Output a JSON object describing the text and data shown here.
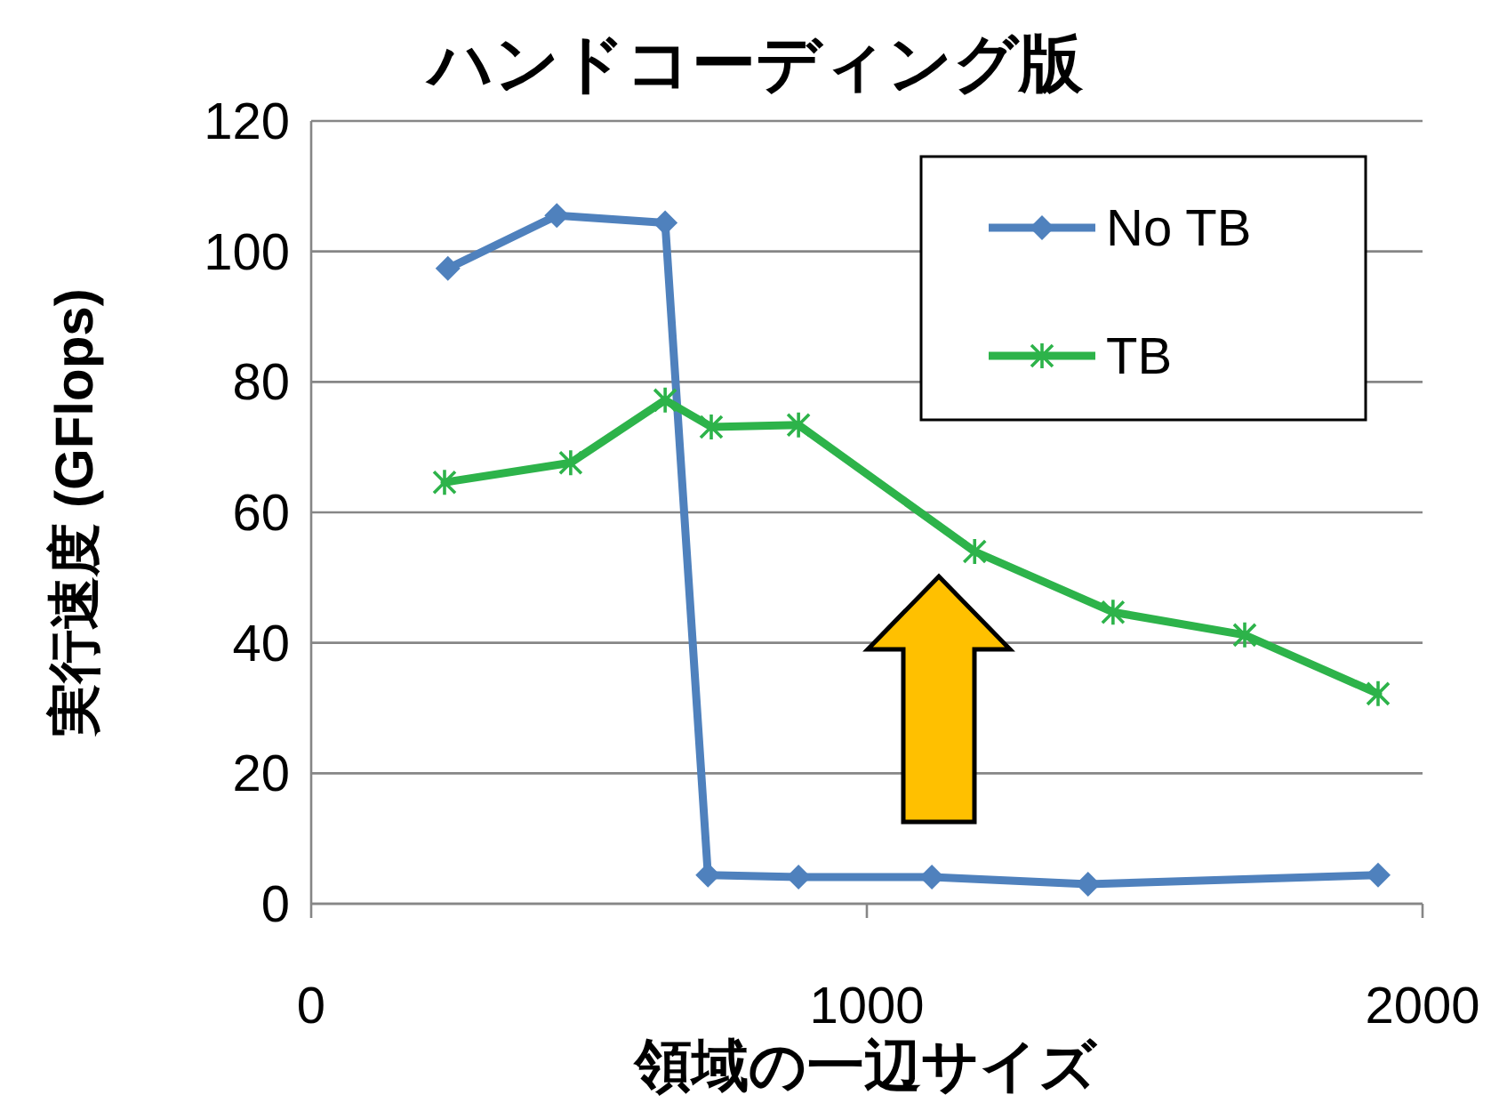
{
  "chart_data": {
    "type": "line",
    "title": "ハンドコーディング版",
    "xlabel": "領域の一辺サイズ",
    "ylabel": "実行速度 (GFlops)",
    "xlim": [
      0,
      2000
    ],
    "xticks": [
      0,
      1000,
      2000
    ],
    "ylim": [
      0,
      120
    ],
    "yticks": [
      0,
      20,
      40,
      60,
      80,
      100,
      120
    ],
    "grid": "y",
    "legend": "top right",
    "series": [
      {
        "name": "No TB",
        "color": "#4f81bd",
        "marker": "diamond",
        "x": [
          246,
          442,
          637,
          714,
          877,
          1117,
          1398,
          1920
        ],
        "values": [
          97.4,
          105.5,
          104.4,
          4.4,
          4.1,
          4.1,
          3,
          4.4
        ]
      },
      {
        "name": "TB",
        "color": "#2db34a",
        "marker": "cross",
        "x": [
          240,
          467,
          637,
          720,
          877,
          1194,
          1443,
          1680,
          1920
        ],
        "values": [
          64.6,
          67.6,
          77.2,
          73.1,
          73.4,
          54,
          44.7,
          41.2,
          32.2
        ]
      }
    ]
  }
}
